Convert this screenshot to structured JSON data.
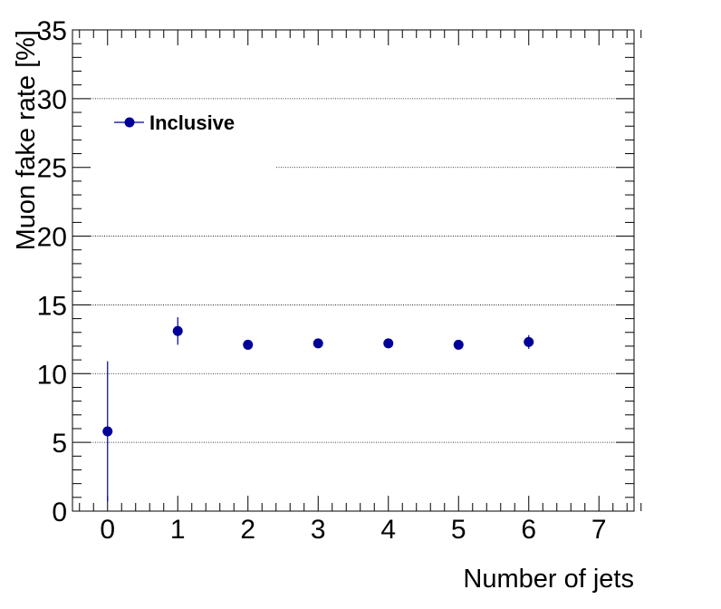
{
  "chart_data": {
    "type": "scatter",
    "xlabel": "Number of jets",
    "ylabel": "Muon fake rate [%]",
    "xlim": [
      -0.5,
      7.5
    ],
    "ylim": [
      0,
      35
    ],
    "x_ticks": [
      0,
      1,
      2,
      3,
      4,
      5,
      6,
      7
    ],
    "y_ticks": [
      0,
      5,
      10,
      15,
      20,
      25,
      30,
      35
    ],
    "grid": "horizontal dotted",
    "legend_position": "top-left",
    "series": [
      {
        "name": "Inclusive",
        "color": "#000099",
        "points": [
          {
            "x": 0,
            "y": 5.8,
            "err": 5.1
          },
          {
            "x": 1,
            "y": 13.1,
            "err": 1.0
          },
          {
            "x": 2,
            "y": 12.1,
            "err": 0.3
          },
          {
            "x": 3,
            "y": 12.2,
            "err": 0.3
          },
          {
            "x": 4,
            "y": 12.2,
            "err": 0.3
          },
          {
            "x": 5,
            "y": 12.1,
            "err": 0.3
          },
          {
            "x": 6,
            "y": 12.3,
            "err": 0.5
          }
        ]
      }
    ]
  }
}
